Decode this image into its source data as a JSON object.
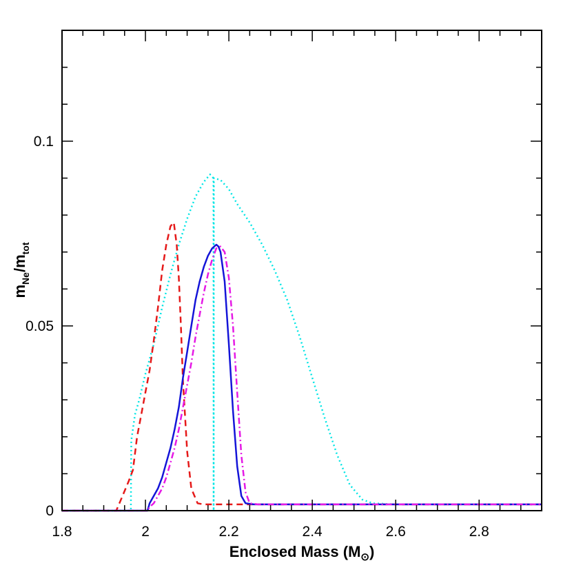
{
  "chart_data": {
    "type": "line",
    "title": "",
    "xlabel": "Enclosed Mass (M",
    "xlabel_sub": "⊙",
    "xlabel_tail": ")",
    "ylabel_main": "m",
    "ylabel_num_sub": "Ne",
    "ylabel_sep": "/m",
    "ylabel_den_sub": "tot",
    "xlim": [
      1.8,
      2.95
    ],
    "ylim": [
      0,
      0.13
    ],
    "xticks": [
      {
        "v": 1.8,
        "label": "1.8"
      },
      {
        "v": 2.0,
        "label": "2"
      },
      {
        "v": 2.2,
        "label": "2.2"
      },
      {
        "v": 2.4,
        "label": "2.4"
      },
      {
        "v": 2.6,
        "label": "2.6"
      },
      {
        "v": 2.8,
        "label": "2.8"
      }
    ],
    "yticks": [
      {
        "v": 0,
        "label": "0"
      },
      {
        "v": 0.05,
        "label": "0.05"
      },
      {
        "v": 0.1,
        "label": "0.1"
      }
    ],
    "x_minor_step": 0.05,
    "y_minor_step": 0.01,
    "grid": false,
    "legend": "none",
    "series": [
      {
        "style": "dotted",
        "color": "#00e5e5",
        "x": [
          1.8,
          1.965,
          1.966,
          1.975,
          1.985,
          2.0,
          2.02,
          2.04,
          2.06,
          2.08,
          2.1,
          2.12,
          2.14,
          2.155,
          2.163,
          2.1635,
          2.164,
          2.18,
          2.2,
          2.22,
          2.25,
          2.28,
          2.31,
          2.34,
          2.37,
          2.4,
          2.43,
          2.46,
          2.49,
          2.52,
          2.545,
          2.6,
          2.95
        ],
        "y": [
          0,
          0,
          0.019,
          0.026,
          0.03,
          0.037,
          0.045,
          0.055,
          0.064,
          0.072,
          0.079,
          0.085,
          0.089,
          0.091,
          0.09,
          0.0,
          0.09,
          0.0895,
          0.087,
          0.083,
          0.078,
          0.072,
          0.065,
          0.057,
          0.047,
          0.036,
          0.025,
          0.015,
          0.007,
          0.003,
          0.002,
          0.0017,
          0.0017
        ]
      },
      {
        "style": "dashed",
        "color": "#e51919",
        "x": [
          1.8,
          1.93,
          1.945,
          1.96,
          1.97,
          1.98,
          1.99,
          2.0,
          2.01,
          2.02,
          2.03,
          2.04,
          2.05,
          2.06,
          2.068,
          2.075,
          2.08,
          2.085,
          2.09,
          2.1,
          2.11,
          2.125,
          2.14,
          2.17,
          2.2,
          2.95
        ],
        "y": [
          0,
          0,
          0.004,
          0.008,
          0.011,
          0.02,
          0.026,
          0.032,
          0.038,
          0.046,
          0.055,
          0.065,
          0.072,
          0.077,
          0.078,
          0.072,
          0.063,
          0.05,
          0.035,
          0.016,
          0.006,
          0.002,
          0.0017,
          0.0017,
          0.0017,
          0.0017
        ]
      },
      {
        "style": "solid",
        "color": "#1414d8",
        "x": [
          1.8,
          2.005,
          2.01,
          2.02,
          2.03,
          2.04,
          2.05,
          2.06,
          2.07,
          2.08,
          2.09,
          2.1,
          2.11,
          2.12,
          2.13,
          2.14,
          2.15,
          2.16,
          2.17,
          2.175,
          2.18,
          2.19,
          2.2,
          2.21,
          2.22,
          2.23,
          2.24,
          2.26,
          2.95
        ],
        "y": [
          0,
          0,
          0.002,
          0.004,
          0.006,
          0.009,
          0.013,
          0.017,
          0.022,
          0.028,
          0.036,
          0.043,
          0.05,
          0.057,
          0.062,
          0.066,
          0.069,
          0.071,
          0.072,
          0.0715,
          0.07,
          0.062,
          0.045,
          0.027,
          0.012,
          0.004,
          0.002,
          0.0017,
          0.0017
        ]
      },
      {
        "style": "dashdot",
        "color": "#e519e5",
        "x": [
          1.8,
          2.005,
          2.01,
          2.02,
          2.03,
          2.04,
          2.05,
          2.06,
          2.07,
          2.08,
          2.09,
          2.1,
          2.11,
          2.12,
          2.13,
          2.14,
          2.15,
          2.16,
          2.17,
          2.18,
          2.19,
          2.2,
          2.21,
          2.22,
          2.23,
          2.24,
          2.25,
          2.27,
          2.95
        ],
        "y": [
          0,
          0,
          0.001,
          0.002,
          0.004,
          0.006,
          0.009,
          0.013,
          0.017,
          0.022,
          0.028,
          0.034,
          0.04,
          0.047,
          0.053,
          0.059,
          0.064,
          0.068,
          0.071,
          0.0715,
          0.07,
          0.063,
          0.05,
          0.032,
          0.015,
          0.005,
          0.002,
          0.0017,
          0.0017
        ]
      }
    ]
  }
}
